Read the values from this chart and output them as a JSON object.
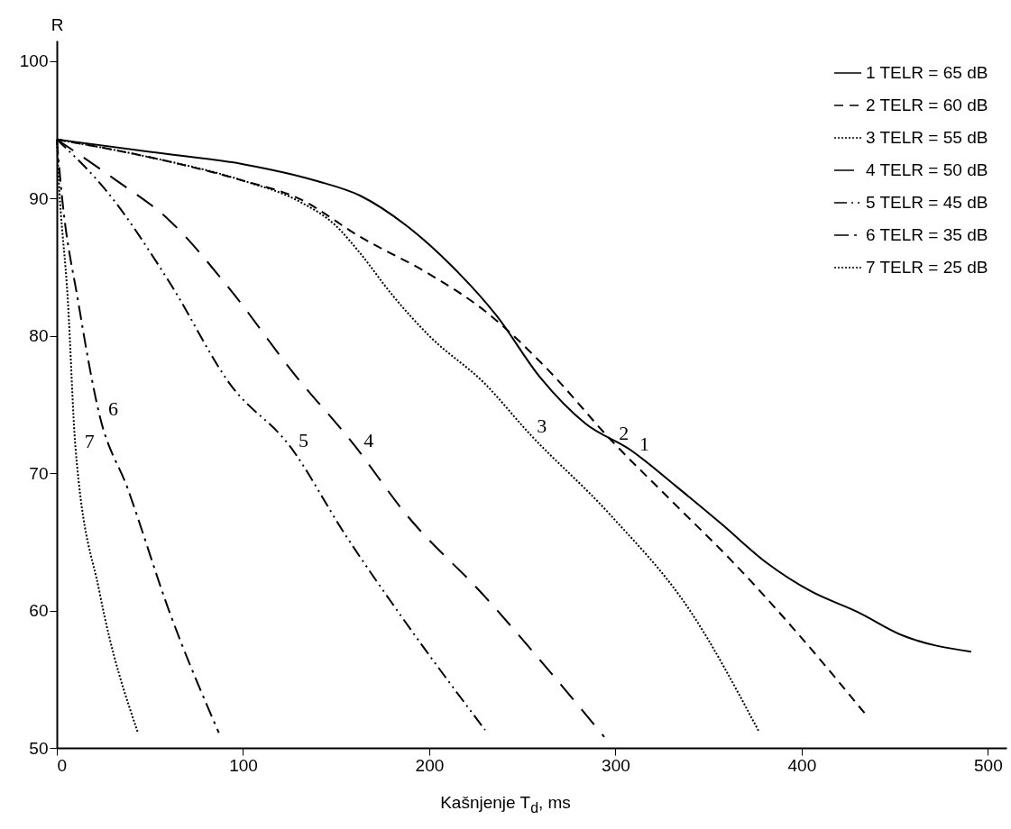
{
  "chart_data": {
    "type": "line",
    "xlabel": "Kašnjenje T$_{d}$, ms",
    "ylabel": "R",
    "xlim": [
      0,
      510
    ],
    "ylim": [
      50,
      101.5
    ],
    "xticks": [
      0,
      100,
      200,
      300,
      400,
      500
    ],
    "yticks": [
      50,
      60,
      70,
      80,
      90,
      100
    ],
    "grid": false,
    "legend": "top right",
    "marker": "none",
    "series": [
      {
        "name": "1 TELR = 65 dB",
        "color": "#000000",
        "line_style": "solid",
        "x": [
          0,
          50,
          100,
          139,
          163,
          188,
          212,
          236,
          260,
          284,
          308,
          333,
          357,
          381,
          405,
          430,
          454,
          491
        ],
        "values": [
          94.3,
          93.4,
          92.5,
          91.3,
          90.2,
          88,
          85.1,
          81.5,
          76.9,
          73.6,
          71.7,
          69,
          66.3,
          63.5,
          61.4,
          59.9,
          58.2,
          57
        ]
      },
      {
        "name": "2 TELR = 60 dB",
        "color": "#000000",
        "line_style": "dashed",
        "x": [
          0,
          50,
          100,
          130,
          163,
          200,
          230,
          264,
          297,
          330,
          364,
          400,
          434
        ],
        "values": [
          94.3,
          93,
          91.3,
          90,
          87.2,
          84.5,
          81.8,
          77.5,
          72.5,
          68,
          63.4,
          58,
          52.5
        ]
      },
      {
        "name": "3 TELR = 55 dB",
        "color": "#000000",
        "line_style": "dotted",
        "x": [
          0,
          50,
          100,
          130,
          150,
          163,
          180,
          200,
          230,
          253,
          297,
          340,
          377
        ],
        "values": [
          94.3,
          93,
          91.3,
          89.8,
          88,
          86,
          83,
          80,
          76.5,
          73,
          67,
          60,
          51.2
        ]
      },
      {
        "name": "4 TELR = 50 dB",
        "color": "#000000",
        "line_style": "longdash",
        "x": [
          0,
          30,
          60.5,
          93.5,
          127,
          160,
          187,
          230,
          262,
          294
        ],
        "values": [
          94.3,
          91.5,
          88.4,
          83.3,
          77.3,
          72,
          67.1,
          61,
          56,
          50.8
        ]
      },
      {
        "name": "5 TELR = 45 dB",
        "color": "#000000",
        "line_style": "dashdotdot",
        "x": [
          0,
          27,
          60.5,
          93.5,
          125,
          155,
          187,
          230
        ],
        "values": [
          94.3,
          90.5,
          83.9,
          76.4,
          72,
          65.5,
          59.2,
          51.3
        ]
      },
      {
        "name": "6 TELR = 35 dB",
        "color": "#000000",
        "line_style": "dashdot",
        "x": [
          0,
          2.5,
          11.6,
          22.8,
          38,
          60.5,
          87
        ],
        "values": [
          94.3,
          90.5,
          82.4,
          74.3,
          68.9,
          59.9,
          51.1
        ]
      },
      {
        "name": "7 TELR = 25 dB",
        "color": "#000000",
        "line_style": "dotted",
        "x": [
          0,
          0.8,
          6,
          10,
          23,
          43.6
        ],
        "values": [
          94.3,
          92,
          82.4,
          71.9,
          61.3,
          51.1
        ]
      }
    ],
    "annotations": [
      {
        "text": "1",
        "x": 308,
        "y": 71.7
      },
      {
        "text": "2",
        "x": 297,
        "y": 72.5
      },
      {
        "text": "3",
        "x": 253,
        "y": 73
      },
      {
        "text": "4",
        "x": 160,
        "y": 72
      },
      {
        "text": "5",
        "x": 125,
        "y": 72
      },
      {
        "text": "6",
        "x": 22.8,
        "y": 74.3
      },
      {
        "text": "7",
        "x": 10,
        "y": 71.9
      }
    ]
  }
}
